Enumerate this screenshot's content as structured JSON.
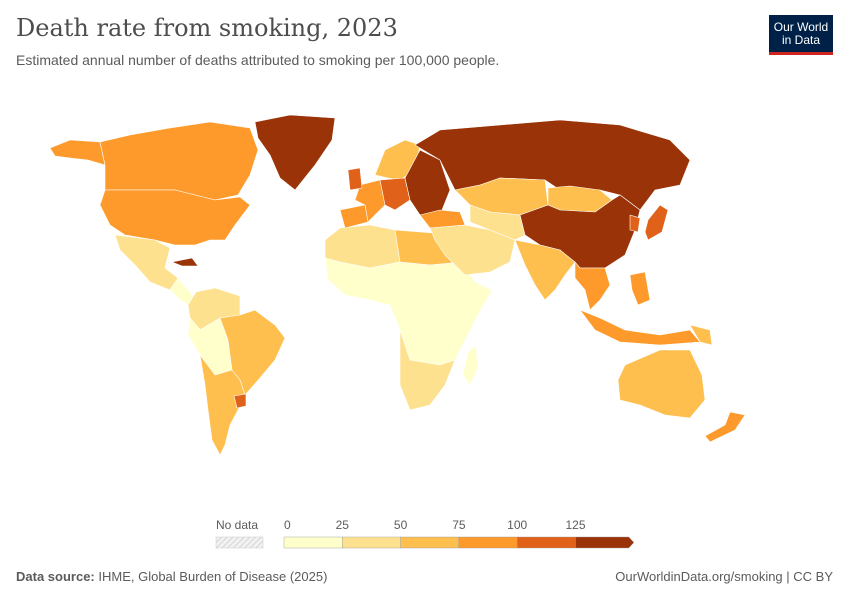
{
  "header": {
    "title": "Death rate from smoking, 2023",
    "subtitle": "Estimated annual number of deaths attributed to smoking per 100,000 people.",
    "logo_text": "Our World in Data"
  },
  "legend": {
    "no_data_label": "No data",
    "ticks": [
      "0",
      "25",
      "50",
      "75",
      "100",
      "125"
    ],
    "bins": [
      {
        "range": "0-25",
        "color": "#ffffcc"
      },
      {
        "range": "25-50",
        "color": "#fee18e"
      },
      {
        "range": "50-75",
        "color": "#febf4f"
      },
      {
        "range": "75-100",
        "color": "#fd9a2b"
      },
      {
        "range": "100-125",
        "color": "#e0621a"
      },
      {
        "range": "125+",
        "color": "#9a3307"
      }
    ],
    "no_data_color": "#eeeeee"
  },
  "regions": [
    {
      "id": "alaska",
      "bin": 3
    },
    {
      "id": "canada",
      "bin": 3
    },
    {
      "id": "usa",
      "bin": 3
    },
    {
      "id": "greenland",
      "bin": 5
    },
    {
      "id": "mexico",
      "bin": 1
    },
    {
      "id": "central-america",
      "bin": 0
    },
    {
      "id": "cuba",
      "bin": 5
    },
    {
      "id": "colombia-venezuela",
      "bin": 1
    },
    {
      "id": "peru-bolivia",
      "bin": 0
    },
    {
      "id": "brazil",
      "bin": 2
    },
    {
      "id": "argentina-chile",
      "bin": 2
    },
    {
      "id": "uruguay",
      "bin": 4
    },
    {
      "id": "north-africa",
      "bin": 1
    },
    {
      "id": "libya-egypt",
      "bin": 2
    },
    {
      "id": "sub-saharan-africa",
      "bin": 0
    },
    {
      "id": "southern-africa",
      "bin": 1
    },
    {
      "id": "madagascar",
      "bin": 0
    },
    {
      "id": "western-europe",
      "bin": 3
    },
    {
      "id": "scandinavia",
      "bin": 2
    },
    {
      "id": "central-europe",
      "bin": 4
    },
    {
      "id": "eastern-europe",
      "bin": 5
    },
    {
      "id": "uk",
      "bin": 4
    },
    {
      "id": "iberia",
      "bin": 3
    },
    {
      "id": "turkey",
      "bin": 3
    },
    {
      "id": "russia",
      "bin": 5
    },
    {
      "id": "kazakhstan",
      "bin": 2
    },
    {
      "id": "mongolia",
      "bin": 2
    },
    {
      "id": "middle-east",
      "bin": 1
    },
    {
      "id": "central-asia",
      "bin": 1
    },
    {
      "id": "china",
      "bin": 5
    },
    {
      "id": "india",
      "bin": 2
    },
    {
      "id": "southeast-asia",
      "bin": 3
    },
    {
      "id": "japan",
      "bin": 4
    },
    {
      "id": "korea",
      "bin": 4
    },
    {
      "id": "indonesia",
      "bin": 3
    },
    {
      "id": "philippines",
      "bin": 3
    },
    {
      "id": "png",
      "bin": 2
    },
    {
      "id": "australia",
      "bin": 2
    },
    {
      "id": "new-zealand",
      "bin": 3
    }
  ],
  "footer": {
    "source_label": "Data source:",
    "source": "IHME, Global Burden of Disease (2025)",
    "url": "OurWorldinData.org/smoking | CC BY"
  }
}
